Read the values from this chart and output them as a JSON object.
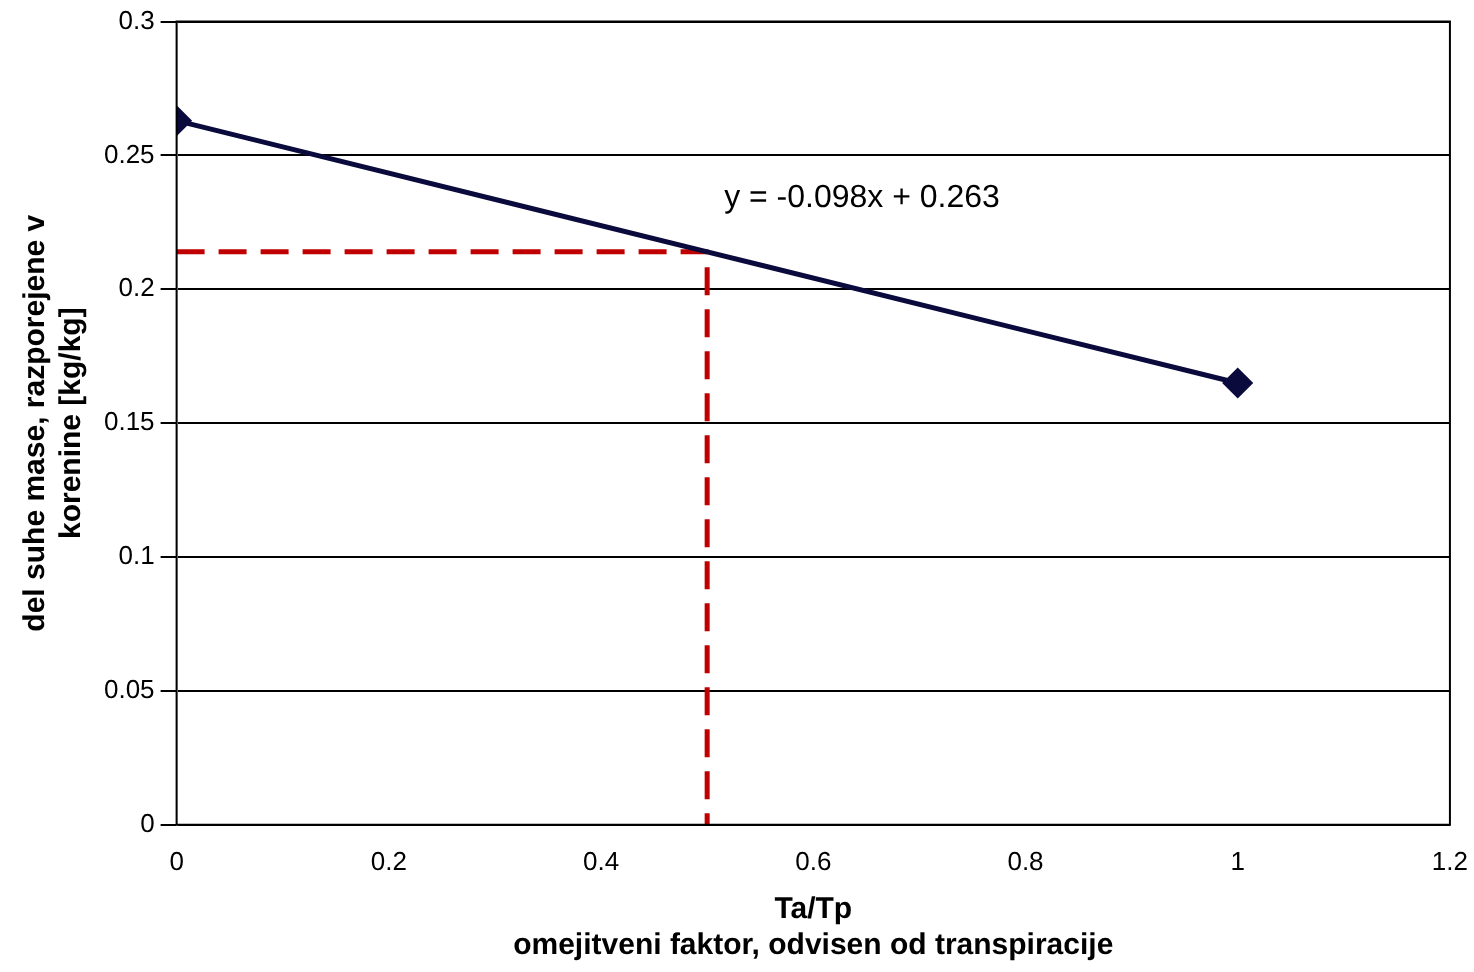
{
  "chart_data": {
    "type": "line",
    "xlabel": "Ta/Tp\nomejitveni faktor, odvisen od transpiracije",
    "ylabel": "del suhe mase, razporejene v\nkorenine [kg/kg]",
    "series": [
      {
        "color": "#0a0a3c",
        "x": [
          0,
          1
        ],
        "values": [
          0.263,
          0.165
        ],
        "marker": "diamond",
        "line_style": "solid"
      },
      {
        "color": "#c00000",
        "x": [
          0,
          0.5,
          0.5
        ],
        "values": [
          0.214,
          0.214,
          0
        ],
        "marker": "none",
        "line_style": "dashed"
      }
    ],
    "annotations": [
      "y = -0.098x + 0.263"
    ],
    "xlim": [
      0,
      1.2
    ],
    "xticks": [
      0,
      0.2,
      0.4,
      0.6,
      0.8,
      1,
      1.2
    ],
    "ylim": [
      0,
      0.3
    ],
    "yticks": [
      0,
      0.05,
      0.1,
      0.15,
      0.2,
      0.25,
      0.3
    ],
    "grid": "y",
    "legend": false
  }
}
